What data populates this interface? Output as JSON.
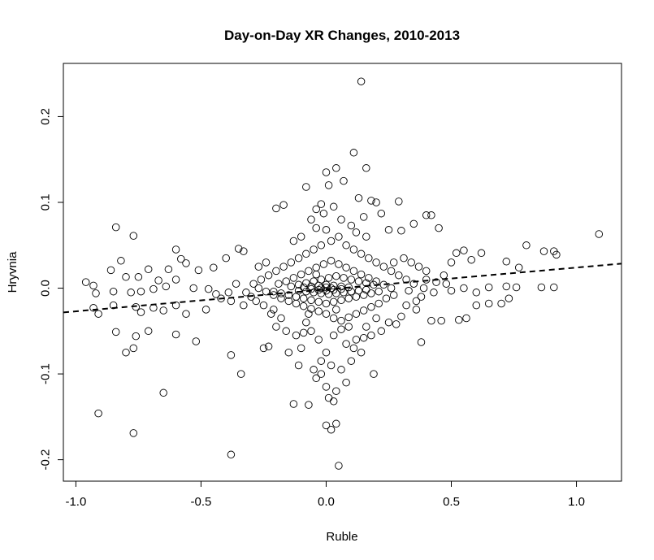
{
  "chart_data": {
    "type": "scatter",
    "title": "Day-on-Day XR Changes, 2010-2013",
    "xlabel": "Ruble",
    "ylabel": "Hryvnia",
    "xlim": [
      -1.05,
      1.18
    ],
    "ylim": [
      -0.225,
      0.262
    ],
    "xticks": [
      -1.0,
      -0.5,
      0.0,
      0.5,
      1.0
    ],
    "xtick_labels": [
      "-1.0",
      "-0.5",
      "0.0",
      "0.5",
      "1.0"
    ],
    "yticks": [
      -0.2,
      -0.1,
      0.0,
      0.1,
      0.2
    ],
    "ytick_labels": [
      "-0.2",
      "-0.1",
      "0.0",
      "0.1",
      "0.2"
    ],
    "grid": false,
    "legend": "none",
    "marker": "open-circle",
    "regression_line": {
      "style": "dashed",
      "intercept": -0.0015,
      "slope": 0.0255
    },
    "points": [
      [
        0.14,
        0.241
      ],
      [
        0.11,
        0.158
      ],
      [
        0.16,
        0.14
      ],
      [
        0.0,
        0.135
      ],
      [
        0.04,
        0.14
      ],
      [
        0.07,
        0.125
      ],
      [
        0.01,
        0.12
      ],
      [
        -0.08,
        0.118
      ],
      [
        0.13,
        0.105
      ],
      [
        0.29,
        0.101
      ],
      [
        0.18,
        0.102
      ],
      [
        0.2,
        0.1
      ],
      [
        -0.17,
        0.097
      ],
      [
        -0.2,
        0.093
      ],
      [
        -0.02,
        0.098
      ],
      [
        0.03,
        0.095
      ],
      [
        -0.04,
        0.092
      ],
      [
        -0.01,
        0.087
      ],
      [
        0.22,
        0.087
      ],
      [
        0.42,
        0.085
      ],
      [
        0.4,
        0.085
      ],
      [
        0.15,
        0.083
      ],
      [
        -0.06,
        0.08
      ],
      [
        0.35,
        0.075
      ],
      [
        0.1,
        0.073
      ],
      [
        0.25,
        0.068
      ],
      [
        0.3,
        0.067
      ],
      [
        0.45,
        0.07
      ],
      [
        0.0,
        0.068
      ],
      [
        -0.84,
        0.071
      ],
      [
        -0.77,
        0.061
      ],
      [
        1.09,
        0.063
      ],
      [
        0.8,
        0.05
      ],
      [
        0.87,
        0.043
      ],
      [
        0.91,
        0.043
      ],
      [
        0.92,
        0.039
      ],
      [
        0.55,
        0.044
      ],
      [
        0.52,
        0.041
      ],
      [
        0.62,
        0.041
      ],
      [
        0.5,
        0.03
      ],
      [
        0.58,
        0.033
      ],
      [
        0.72,
        0.031
      ],
      [
        0.77,
        0.024
      ],
      [
        -0.6,
        0.045
      ],
      [
        -0.58,
        0.034
      ],
      [
        -0.56,
        0.029
      ],
      [
        -0.51,
        0.021
      ],
      [
        -0.45,
        0.024
      ],
      [
        -0.35,
        0.046
      ],
      [
        -0.33,
        0.043
      ],
      [
        -0.4,
        0.035
      ],
      [
        -0.82,
        0.032
      ],
      [
        -0.86,
        0.021
      ],
      [
        -0.8,
        0.013
      ],
      [
        -0.75,
        0.013
      ],
      [
        -0.71,
        0.022
      ],
      [
        -0.67,
        0.009
      ],
      [
        -0.63,
        0.022
      ],
      [
        -0.6,
        0.01
      ],
      [
        -0.96,
        0.007
      ],
      [
        -0.93,
        0.003
      ],
      [
        -0.92,
        -0.006
      ],
      [
        -0.85,
        -0.004
      ],
      [
        -0.78,
        -0.005
      ],
      [
        -0.74,
        -0.004
      ],
      [
        -0.69,
        -0.001
      ],
      [
        -0.64,
        0.002
      ],
      [
        -0.53,
        0.0
      ],
      [
        -0.47,
        -0.001
      ],
      [
        -0.44,
        -0.007
      ],
      [
        -0.42,
        -0.012
      ],
      [
        -0.38,
        -0.015
      ],
      [
        -0.93,
        -0.023
      ],
      [
        -0.91,
        -0.03
      ],
      [
        -0.85,
        -0.02
      ],
      [
        -0.76,
        -0.022
      ],
      [
        -0.74,
        -0.028
      ],
      [
        -0.69,
        -0.023
      ],
      [
        -0.65,
        -0.026
      ],
      [
        -0.6,
        -0.02
      ],
      [
        -0.56,
        -0.03
      ],
      [
        -0.48,
        -0.025
      ],
      [
        -0.84,
        -0.051
      ],
      [
        -0.76,
        -0.056
      ],
      [
        -0.71,
        -0.05
      ],
      [
        -0.6,
        -0.054
      ],
      [
        -0.52,
        -0.062
      ],
      [
        -0.8,
        -0.075
      ],
      [
        -0.77,
        -0.07
      ],
      [
        -0.38,
        -0.078
      ],
      [
        -0.34,
        -0.1
      ],
      [
        -0.65,
        -0.122
      ],
      [
        -0.91,
        -0.146
      ],
      [
        -0.77,
        -0.169
      ],
      [
        -0.38,
        -0.194
      ],
      [
        -0.13,
        -0.135
      ],
      [
        -0.07,
        -0.136
      ],
      [
        0.01,
        -0.128
      ],
      [
        0.03,
        -0.132
      ],
      [
        0.0,
        -0.16
      ],
      [
        0.02,
        -0.165
      ],
      [
        0.04,
        -0.158
      ],
      [
        0.05,
        -0.207
      ],
      [
        0.0,
        -0.115
      ],
      [
        -0.02,
        -0.1
      ],
      [
        -0.05,
        -0.095
      ],
      [
        0.04,
        -0.12
      ],
      [
        0.1,
        -0.085
      ],
      [
        0.19,
        -0.1
      ],
      [
        0.11,
        -0.07
      ],
      [
        -0.1,
        -0.07
      ],
      [
        -0.15,
        -0.075
      ],
      [
        -0.23,
        -0.068
      ],
      [
        -0.25,
        -0.07
      ],
      [
        0.38,
        -0.063
      ],
      [
        0.42,
        -0.038
      ],
      [
        0.46,
        -0.038
      ],
      [
        0.53,
        -0.037
      ],
      [
        0.56,
        -0.035
      ],
      [
        0.6,
        -0.02
      ],
      [
        0.65,
        -0.018
      ],
      [
        0.7,
        -0.018
      ],
      [
        0.73,
        -0.012
      ],
      [
        0.6,
        -0.005
      ],
      [
        0.65,
        0.001
      ],
      [
        0.72,
        0.002
      ],
      [
        0.76,
        0.001
      ],
      [
        0.86,
        0.001
      ],
      [
        0.91,
        0.001
      ],
      [
        0.55,
        0.0
      ],
      [
        0.5,
        -0.003
      ],
      [
        0.48,
        0.005
      ],
      [
        0.44,
        0.007
      ],
      [
        0.47,
        0.015
      ],
      [
        0.4,
        0.02
      ],
      [
        0.38,
        -0.01
      ],
      [
        0.36,
        -0.025
      ],
      [
        0.32,
        -0.02
      ],
      [
        0.3,
        -0.033
      ],
      [
        0.28,
        -0.042
      ],
      [
        0.25,
        -0.04
      ],
      [
        0.22,
        -0.05
      ],
      [
        0.18,
        -0.055
      ],
      [
        0.15,
        -0.058
      ],
      [
        0.12,
        -0.06
      ],
      [
        0.08,
        -0.065
      ],
      [
        0.06,
        -0.048
      ],
      [
        0.03,
        -0.055
      ],
      [
        -0.03,
        -0.06
      ],
      [
        -0.06,
        -0.05
      ],
      [
        -0.09,
        -0.052
      ],
      [
        -0.12,
        -0.055
      ],
      [
        -0.16,
        -0.05
      ],
      [
        -0.2,
        -0.045
      ],
      [
        -0.22,
        -0.03
      ],
      [
        -0.25,
        -0.02
      ],
      [
        -0.28,
        -0.015
      ],
      [
        -0.3,
        -0.01
      ],
      [
        -0.32,
        -0.005
      ],
      [
        -0.29,
        0.005
      ],
      [
        -0.26,
        0.01
      ],
      [
        -0.23,
        0.015
      ],
      [
        -0.2,
        0.02
      ],
      [
        -0.17,
        0.025
      ],
      [
        -0.14,
        0.03
      ],
      [
        -0.11,
        0.035
      ],
      [
        -0.08,
        0.04
      ],
      [
        -0.05,
        0.045
      ],
      [
        -0.02,
        0.05
      ],
      [
        0.02,
        0.055
      ],
      [
        0.05,
        0.06
      ],
      [
        0.08,
        0.05
      ],
      [
        0.11,
        0.045
      ],
      [
        0.14,
        0.04
      ],
      [
        0.17,
        0.035
      ],
      [
        0.2,
        0.03
      ],
      [
        0.23,
        0.025
      ],
      [
        0.26,
        0.02
      ],
      [
        0.29,
        0.015
      ],
      [
        0.32,
        0.01
      ],
      [
        0.35,
        0.005
      ],
      [
        0.33,
        -0.003
      ],
      [
        0.27,
        -0.008
      ],
      [
        0.24,
        -0.012
      ],
      [
        0.21,
        -0.018
      ],
      [
        0.18,
        -0.022
      ],
      [
        0.15,
        -0.026
      ],
      [
        0.12,
        -0.03
      ],
      [
        0.09,
        -0.034
      ],
      [
        0.06,
        -0.038
      ],
      [
        0.03,
        -0.035
      ],
      [
        0.0,
        -0.03
      ],
      [
        -0.03,
        -0.027
      ],
      [
        -0.06,
        -0.024
      ],
      [
        -0.09,
        -0.021
      ],
      [
        -0.12,
        -0.018
      ],
      [
        -0.15,
        -0.015
      ],
      [
        -0.18,
        -0.012
      ],
      [
        -0.21,
        -0.008
      ],
      [
        -0.24,
        -0.004
      ],
      [
        -0.27,
        0.0
      ],
      [
        -0.19,
        0.005
      ],
      [
        -0.16,
        0.008
      ],
      [
        -0.13,
        0.012
      ],
      [
        -0.1,
        0.016
      ],
      [
        -0.07,
        0.02
      ],
      [
        -0.04,
        0.024
      ],
      [
        -0.01,
        0.028
      ],
      [
        0.02,
        0.032
      ],
      [
        0.05,
        0.028
      ],
      [
        0.08,
        0.024
      ],
      [
        0.11,
        0.02
      ],
      [
        0.14,
        0.016
      ],
      [
        0.17,
        0.012
      ],
      [
        0.2,
        0.008
      ],
      [
        0.23,
        0.004
      ],
      [
        0.26,
        0.0
      ],
      [
        0.21,
        -0.004
      ],
      [
        0.18,
        -0.006
      ],
      [
        0.15,
        -0.008
      ],
      [
        0.12,
        -0.01
      ],
      [
        0.09,
        -0.012
      ],
      [
        0.06,
        -0.014
      ],
      [
        0.03,
        -0.016
      ],
      [
        0.0,
        -0.018
      ],
      [
        -0.03,
        -0.016
      ],
      [
        -0.06,
        -0.014
      ],
      [
        -0.09,
        -0.012
      ],
      [
        -0.12,
        -0.01
      ],
      [
        -0.15,
        -0.008
      ],
      [
        -0.18,
        -0.006
      ],
      [
        -0.21,
        -0.004
      ],
      [
        -0.14,
        0.002
      ],
      [
        -0.11,
        0.004
      ],
      [
        -0.08,
        0.006
      ],
      [
        -0.05,
        0.008
      ],
      [
        -0.02,
        0.01
      ],
      [
        0.01,
        0.012
      ],
      [
        0.04,
        0.014
      ],
      [
        0.07,
        0.012
      ],
      [
        0.1,
        0.01
      ],
      [
        0.13,
        0.008
      ],
      [
        0.16,
        0.006
      ],
      [
        0.19,
        0.004
      ],
      [
        0.16,
        -0.002
      ],
      [
        0.13,
        -0.003
      ],
      [
        0.1,
        -0.004
      ],
      [
        0.07,
        -0.005
      ],
      [
        0.04,
        -0.006
      ],
      [
        0.01,
        -0.007
      ],
      [
        -0.02,
        -0.006
      ],
      [
        -0.05,
        -0.005
      ],
      [
        -0.08,
        -0.004
      ],
      [
        -0.11,
        -0.003
      ],
      [
        -0.09,
        0.001
      ],
      [
        -0.06,
        0.002
      ],
      [
        -0.03,
        0.003
      ],
      [
        0.0,
        0.004
      ],
      [
        0.03,
        0.003
      ],
      [
        0.06,
        0.002
      ],
      [
        0.09,
        0.001
      ],
      [
        0.06,
        -0.001
      ],
      [
        0.03,
        -0.002
      ],
      [
        0.0,
        -0.003
      ],
      [
        -0.03,
        -0.002
      ],
      [
        -0.06,
        -0.001
      ],
      [
        -0.02,
        0.0
      ],
      [
        0.02,
        0.0
      ],
      [
        0.0,
        0.001
      ],
      [
        -0.04,
        0.016
      ],
      [
        -0.07,
        -0.03
      ],
      [
        0.04,
        -0.025
      ],
      [
        -0.1,
        0.06
      ],
      [
        -0.13,
        0.055
      ],
      [
        0.12,
        0.065
      ],
      [
        0.16,
        0.06
      ],
      [
        0.06,
        0.08
      ],
      [
        -0.04,
        0.07
      ],
      [
        0.09,
        -0.045
      ],
      [
        -0.08,
        -0.04
      ],
      [
        0.0,
        -0.075
      ],
      [
        -0.02,
        -0.085
      ],
      [
        0.02,
        -0.09
      ],
      [
        -0.04,
        -0.105
      ],
      [
        0.06,
        -0.095
      ],
      [
        0.08,
        -0.11
      ],
      [
        -0.11,
        -0.09
      ],
      [
        0.14,
        -0.075
      ],
      [
        0.16,
        -0.045
      ],
      [
        0.2,
        -0.035
      ],
      [
        -0.18,
        -0.035
      ],
      [
        -0.21,
        -0.025
      ],
      [
        -0.24,
        0.03
      ],
      [
        -0.27,
        0.025
      ],
      [
        0.27,
        0.03
      ],
      [
        0.31,
        0.035
      ],
      [
        0.34,
        0.03
      ],
      [
        0.37,
        0.025
      ],
      [
        0.4,
        0.01
      ],
      [
        0.43,
        -0.005
      ],
      [
        -0.36,
        0.005
      ],
      [
        -0.39,
        -0.005
      ],
      [
        -0.33,
        -0.02
      ],
      [
        0.36,
        -0.015
      ],
      [
        0.39,
        0.0
      ]
    ]
  }
}
